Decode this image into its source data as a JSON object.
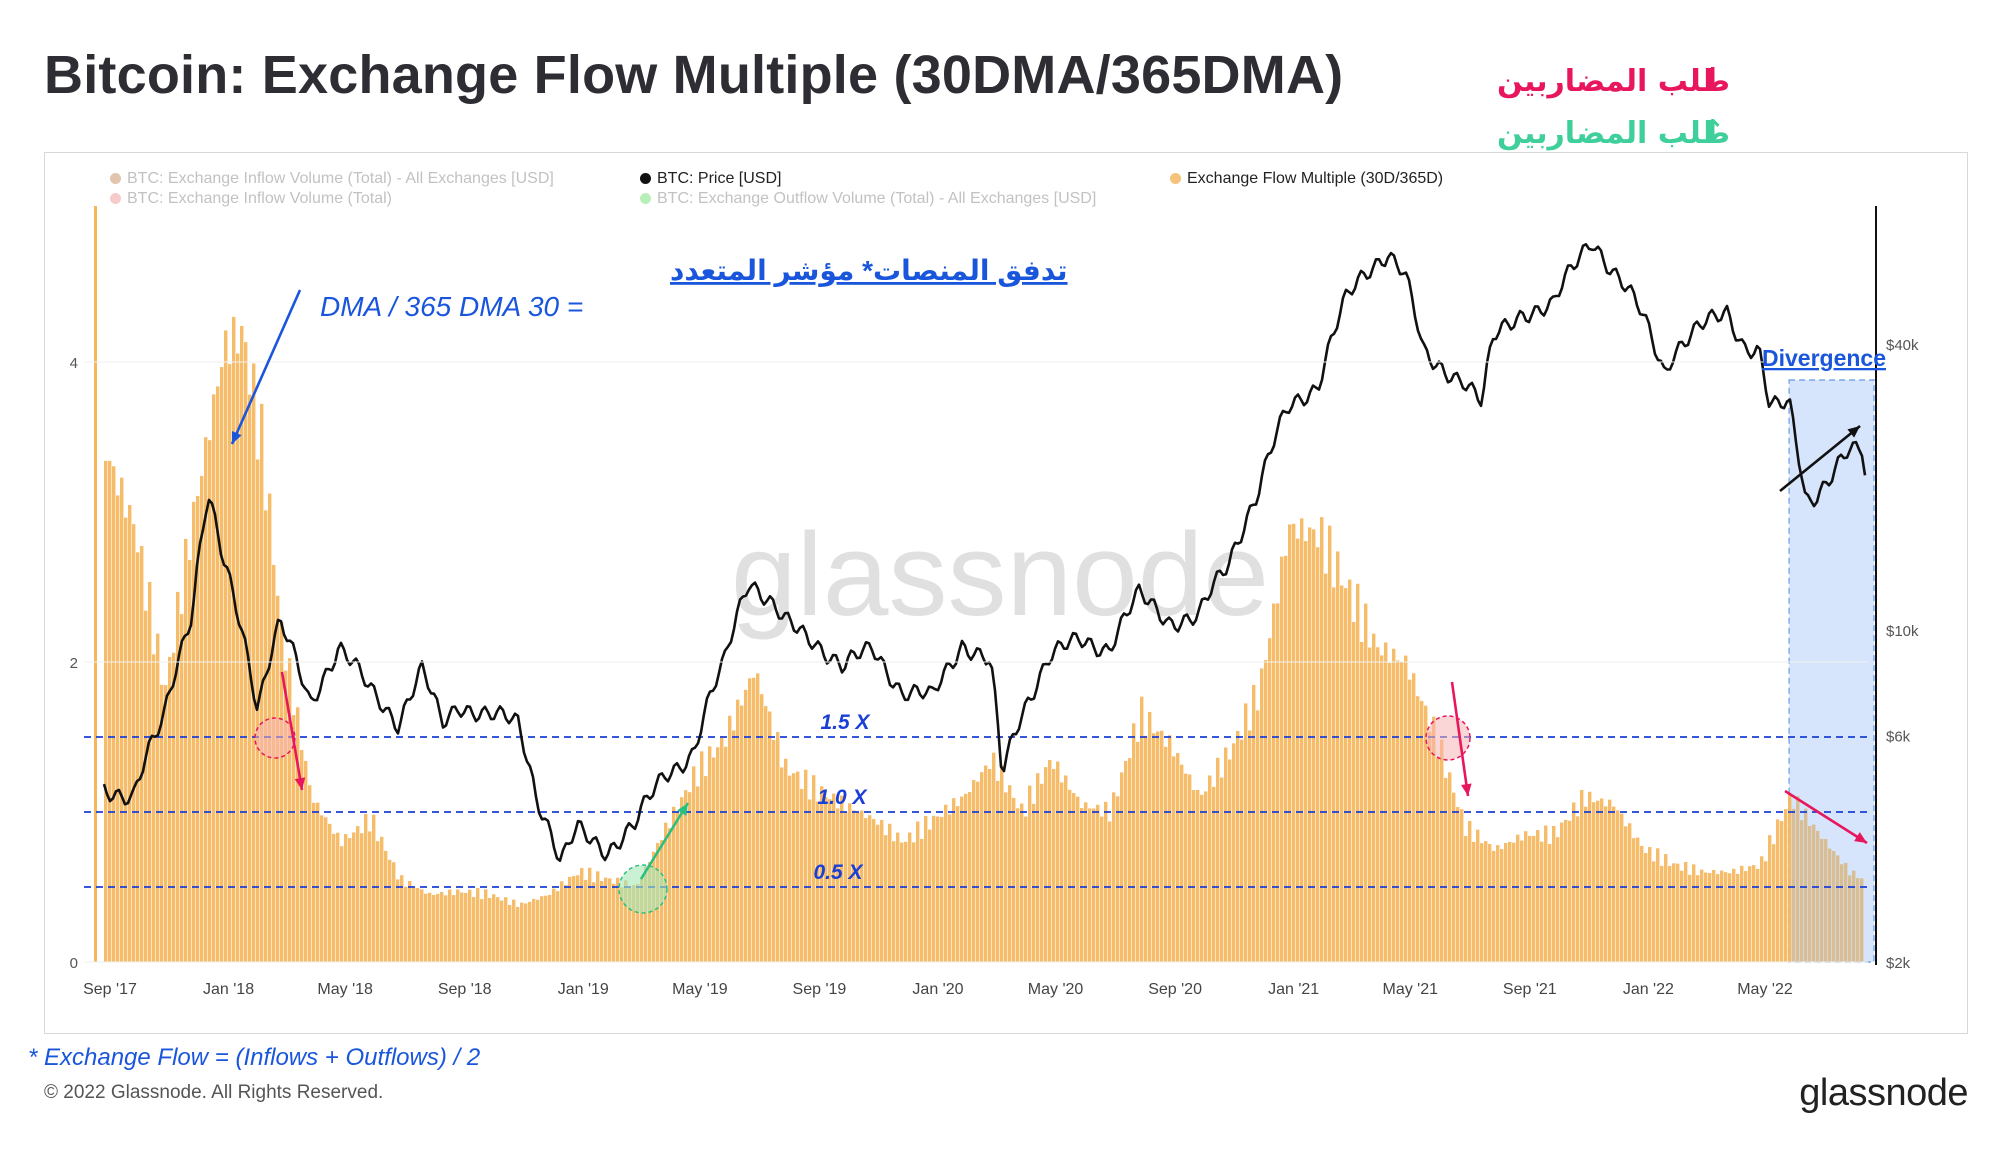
{
  "page": {
    "title": "Bitcoin: Exchange Flow Multiple (30DMA/365DMA)",
    "demand_down_label": "طلب المضاربين",
    "demand_down_arrow": "↓",
    "demand_down_color": "#e8175d",
    "demand_up_label": "طلب المضاربين",
    "demand_up_arrow": "↑",
    "demand_up_color": "#3ecf9a",
    "footnote": "* Exchange Flow = (Inflows + Outflows) / 2",
    "copyright": "© 2022 Glassnode. All Rights Reserved.",
    "brand": "glassnode",
    "watermark": "glassnode"
  },
  "legend": [
    {
      "label": "BTC: Exchange Inflow Volume (Total) - All Exchanges [USD]",
      "color": "#c9956a",
      "muted": true
    },
    {
      "label": "BTC: Exchange Inflow Volume (Total)",
      "color": "#f2a0a0",
      "muted": true
    },
    {
      "label": "BTC: Price [USD]",
      "color": "#111111",
      "muted": false
    },
    {
      "label": "BTC: Exchange Outflow Volume (Total) - All Exchanges [USD]",
      "color": "#7de07d",
      "muted": true
    },
    {
      "label": "Exchange Flow Multiple (30D/365D)",
      "color": "#f5c27a",
      "muted": false
    }
  ],
  "annotations": {
    "arabic_heading": "تدفق المنصات* مؤشر المتعدد",
    "formula": "DMA / 365 DMA 30 =",
    "divergence": "Divergence",
    "level_labels": [
      "1.5 X",
      "1.0 X",
      "0.5 X"
    ]
  },
  "colors": {
    "bars": "#f5b65c",
    "price": "#111111",
    "reference_line": "#1a3fd6",
    "annotation_blue": "#1a56db",
    "divergence_box": "#cfe0fb",
    "sell_arrow": "#e8175d",
    "buy_arrow": "#2bbf7f"
  },
  "chart_data": {
    "type": "bar",
    "title": "Bitcoin: Exchange Flow Multiple (30DMA/365DMA)",
    "x_ticks": [
      "Sep '17",
      "Jan '18",
      "May '18",
      "Sep '18",
      "Jan '19",
      "May '19",
      "Sep '19",
      "Jan '20",
      "May '20",
      "Sep '20",
      "Jan '21",
      "May '21",
      "Sep '21",
      "Jan '22",
      "May '22"
    ],
    "x_range": [
      "2017-09-01",
      "2022-08-15"
    ],
    "y_left": {
      "ticks": [
        "0",
        "2",
        "4"
      ],
      "range": [
        0,
        4.5
      ]
    },
    "y_right": {
      "scale": "log",
      "ticks": [
        "$2k",
        "$6k",
        "$10k",
        "$40k"
      ],
      "range": [
        2000,
        90000
      ]
    },
    "reference_lines": [
      1.5,
      1.0,
      0.5
    ],
    "series": [
      {
        "name": "Exchange Flow Multiple (30D/365D)",
        "type": "bar",
        "points": [
          [
            "2017-09-01",
            3.4
          ],
          [
            "2017-10-01",
            2.9
          ],
          [
            "2017-11-01",
            1.8
          ],
          [
            "2017-12-01",
            3.0
          ],
          [
            "2018-01-01",
            4.1
          ],
          [
            "2018-01-20",
            4.2
          ],
          [
            "2018-02-10",
            3.4
          ],
          [
            "2018-03-01",
            2.2
          ],
          [
            "2018-04-01",
            1.1
          ],
          [
            "2018-05-01",
            0.8
          ],
          [
            "2018-06-01",
            0.95
          ],
          [
            "2018-07-01",
            0.55
          ],
          [
            "2018-08-01",
            0.45
          ],
          [
            "2018-09-01",
            0.47
          ],
          [
            "2018-10-01",
            0.45
          ],
          [
            "2018-11-01",
            0.38
          ],
          [
            "2018-12-01",
            0.45
          ],
          [
            "2019-01-01",
            0.6
          ],
          [
            "2019-02-01",
            0.55
          ],
          [
            "2019-03-01",
            0.5
          ],
          [
            "2019-04-01",
            0.9
          ],
          [
            "2019-05-01",
            1.25
          ],
          [
            "2019-06-01",
            1.5
          ],
          [
            "2019-07-01",
            1.95
          ],
          [
            "2019-08-01",
            1.3
          ],
          [
            "2019-09-01",
            1.15
          ],
          [
            "2019-10-01",
            1.05
          ],
          [
            "2019-11-01",
            0.95
          ],
          [
            "2019-12-01",
            0.8
          ],
          [
            "2020-01-01",
            0.95
          ],
          [
            "2020-02-01",
            1.1
          ],
          [
            "2020-03-01",
            1.35
          ],
          [
            "2020-04-01",
            1.0
          ],
          [
            "2020-05-01",
            1.35
          ],
          [
            "2020-06-01",
            1.05
          ],
          [
            "2020-07-01",
            1.0
          ],
          [
            "2020-08-01",
            1.65
          ],
          [
            "2020-09-01",
            1.45
          ],
          [
            "2020-10-01",
            1.1
          ],
          [
            "2020-11-01",
            1.4
          ],
          [
            "2020-12-01",
            1.8
          ],
          [
            "2021-01-01",
            2.9
          ],
          [
            "2021-02-01",
            2.85
          ],
          [
            "2021-03-01",
            2.5
          ],
          [
            "2021-04-01",
            2.1
          ],
          [
            "2021-05-01",
            2.0
          ],
          [
            "2021-06-01",
            1.5
          ],
          [
            "2021-07-01",
            0.9
          ],
          [
            "2021-08-01",
            0.75
          ],
          [
            "2021-09-01",
            0.85
          ],
          [
            "2021-10-01",
            0.85
          ],
          [
            "2021-11-01",
            1.1
          ],
          [
            "2021-12-01",
            1.05
          ],
          [
            "2022-01-01",
            0.75
          ],
          [
            "2022-02-01",
            0.65
          ],
          [
            "2022-03-01",
            0.6
          ],
          [
            "2022-04-01",
            0.6
          ],
          [
            "2022-05-01",
            0.65
          ],
          [
            "2022-06-01",
            1.1
          ],
          [
            "2022-07-01",
            0.85
          ],
          [
            "2022-08-01",
            0.6
          ],
          [
            "2022-08-15",
            0.55
          ]
        ]
      },
      {
        "name": "BTC: Price [USD]",
        "type": "line",
        "points": [
          [
            "2017-09-01",
            4700
          ],
          [
            "2017-10-01",
            4400
          ],
          [
            "2017-11-01",
            6500
          ],
          [
            "2017-12-01",
            11000
          ],
          [
            "2017-12-17",
            19000
          ],
          [
            "2018-01-01",
            14000
          ],
          [
            "2018-02-06",
            6900
          ],
          [
            "2018-03-01",
            10300
          ],
          [
            "2018-04-01",
            7000
          ],
          [
            "2018-05-01",
            9200
          ],
          [
            "2018-06-01",
            7500
          ],
          [
            "2018-07-01",
            6400
          ],
          [
            "2018-07-25",
            8200
          ],
          [
            "2018-08-15",
            6300
          ],
          [
            "2018-09-01",
            7000
          ],
          [
            "2018-10-01",
            6600
          ],
          [
            "2018-11-01",
            6400
          ],
          [
            "2018-11-20",
            4500
          ],
          [
            "2018-12-15",
            3200
          ],
          [
            "2019-01-01",
            3800
          ],
          [
            "2019-02-01",
            3450
          ],
          [
            "2019-03-01",
            3850
          ],
          [
            "2019-04-01",
            5000
          ],
          [
            "2019-05-01",
            5500
          ],
          [
            "2019-06-01",
            8500
          ],
          [
            "2019-06-26",
            12900
          ],
          [
            "2019-08-01",
            10400
          ],
          [
            "2019-09-01",
            9600
          ],
          [
            "2019-10-01",
            8300
          ],
          [
            "2019-11-01",
            9200
          ],
          [
            "2019-12-01",
            7400
          ],
          [
            "2020-01-01",
            7200
          ],
          [
            "2020-02-01",
            9400
          ],
          [
            "2020-03-01",
            8500
          ],
          [
            "2020-03-13",
            4900
          ],
          [
            "2020-04-01",
            6600
          ],
          [
            "2020-05-01",
            8800
          ],
          [
            "2020-06-01",
            9500
          ],
          [
            "2020-07-01",
            9200
          ],
          [
            "2020-08-01",
            11800
          ],
          [
            "2020-09-01",
            10500
          ],
          [
            "2020-10-01",
            10600
          ],
          [
            "2020-11-01",
            13800
          ],
          [
            "2020-12-01",
            19500
          ],
          [
            "2021-01-01",
            29000
          ],
          [
            "2021-02-01",
            33000
          ],
          [
            "2021-03-01",
            49000
          ],
          [
            "2021-04-01",
            59000
          ],
          [
            "2021-04-14",
            63000
          ],
          [
            "2021-05-01",
            57000
          ],
          [
            "2021-05-20",
            38000
          ],
          [
            "2021-06-01",
            36000
          ],
          [
            "2021-07-01",
            34000
          ],
          [
            "2021-07-20",
            30000
          ],
          [
            "2021-08-01",
            41000
          ],
          [
            "2021-09-01",
            47000
          ],
          [
            "2021-10-01",
            48000
          ],
          [
            "2021-11-10",
            67000
          ],
          [
            "2021-12-01",
            57000
          ],
          [
            "2022-01-01",
            46000
          ],
          [
            "2022-01-24",
            35000
          ],
          [
            "2022-02-01",
            38500
          ],
          [
            "2022-03-01",
            43000
          ],
          [
            "2022-03-29",
            47000
          ],
          [
            "2022-04-15",
            40000
          ],
          [
            "2022-05-01",
            38500
          ],
          [
            "2022-05-12",
            29000
          ],
          [
            "2022-06-01",
            30000
          ],
          [
            "2022-06-18",
            19000
          ],
          [
            "2022-07-01",
            19500
          ],
          [
            "2022-07-15",
            21000
          ],
          [
            "2022-08-01",
            23500
          ],
          [
            "2022-08-15",
            24000
          ],
          [
            "2022-08-19",
            21000
          ]
        ]
      }
    ]
  }
}
